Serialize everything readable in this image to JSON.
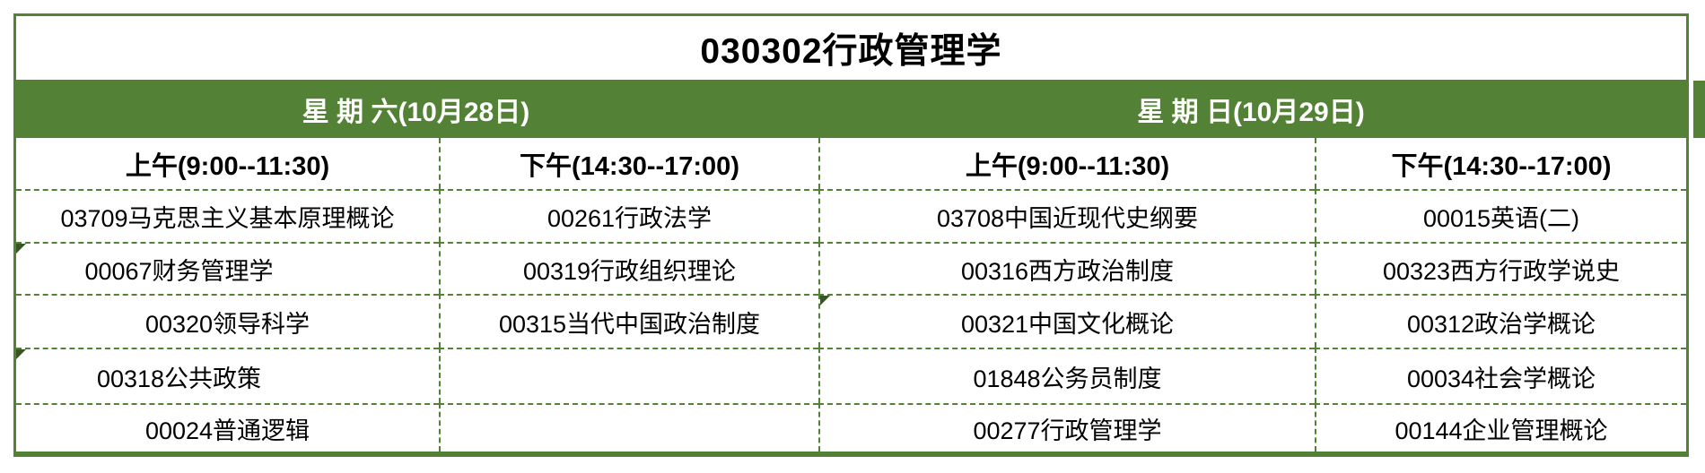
{
  "page": {
    "title": "030302行政管理学"
  },
  "colors": {
    "table_green": "#538135",
    "marker_green": "#375623",
    "header_text": "#ffffff",
    "body_text": "#000000",
    "background": "#ffffff"
  },
  "days": [
    {
      "label": "星 期 六(10月28日)"
    },
    {
      "label": "星 期 日(10月29日)"
    }
  ],
  "schedule": {
    "columns": [
      {
        "day": "星期六",
        "session": "上午(9:00--11:30)",
        "courses": [
          "03709马克思主义基本原理概论",
          "00067财务管理学",
          "00320领导科学",
          "00318公共政策",
          "00024普通逻辑"
        ]
      },
      {
        "day": "星期六",
        "session": "下午(14:30--17:00)",
        "courses": [
          "00261行政法学",
          "00319行政组织理论",
          "00315当代中国政治制度",
          "",
          ""
        ]
      },
      {
        "day": "星期日",
        "session": "上午(9:00--11:30)",
        "courses": [
          "03708中国近现代史纲要",
          "00316西方政治制度",
          "00321中国文化概论",
          "01848公务员制度",
          "00277行政管理学"
        ]
      },
      {
        "day": "星期日",
        "session": "下午(14:30--17:00)",
        "courses": [
          "00015英语(二)",
          "00323西方行政学说史",
          "00312政治学概论",
          "00034社会学概论",
          "00144企业管理概论"
        ]
      }
    ],
    "corner_flagged_cells": [
      "00067财务管理学",
      "00318公共政策",
      "00321中国文化概论"
    ]
  }
}
